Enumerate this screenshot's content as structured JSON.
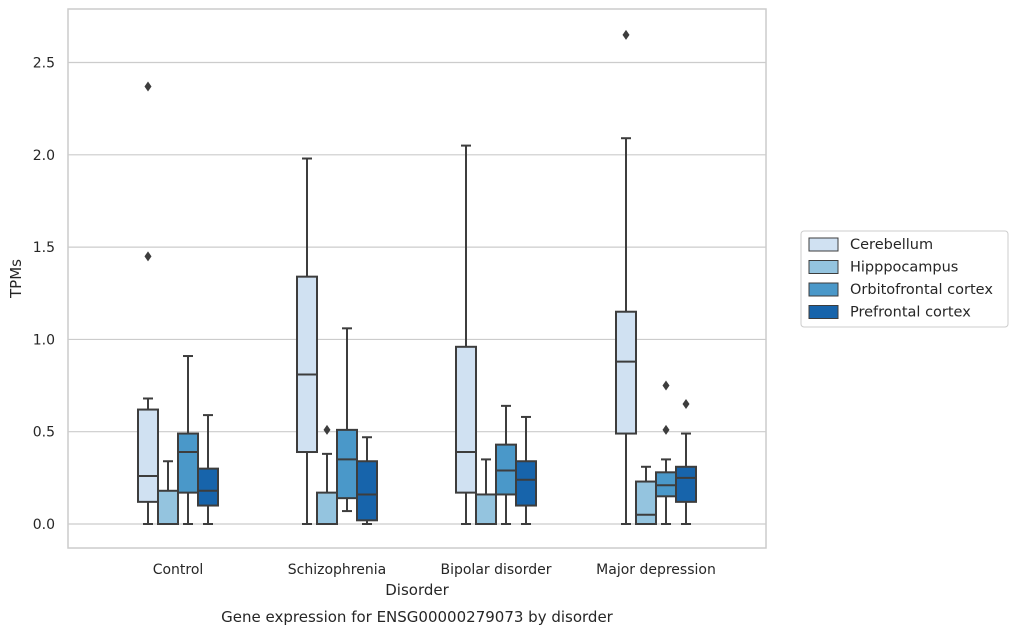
{
  "chart_data": {
    "type": "box",
    "title": "",
    "caption": "Gene expression for ENSG00000279073 by disorder",
    "xlabel": "Disorder",
    "ylabel": "TPMs",
    "categories": [
      "Control",
      "Schizophrenia",
      "Bipolar disorder",
      "Major depression"
    ],
    "ylim": [
      -0.13,
      2.79
    ],
    "yticks": [
      0.0,
      0.5,
      1.0,
      1.5,
      2.0,
      2.5
    ],
    "ytick_labels": [
      "0.0",
      "0.5",
      "1.0",
      "1.5",
      "2.0",
      "2.5"
    ],
    "grid": "horizontal",
    "legend_position": "right",
    "series": [
      {
        "name": "Cerebellum",
        "color": "#d0e1f2",
        "boxes": [
          {
            "whisker_low": 0.0,
            "q1": 0.12,
            "median": 0.26,
            "q3": 0.62,
            "whisker_high": 0.68,
            "outliers": [
              1.45,
              2.37
            ]
          },
          {
            "whisker_low": 0.0,
            "q1": 0.39,
            "median": 0.81,
            "q3": 1.34,
            "whisker_high": 1.98,
            "outliers": []
          },
          {
            "whisker_low": 0.0,
            "q1": 0.17,
            "median": 0.39,
            "q3": 0.96,
            "whisker_high": 2.05,
            "outliers": []
          },
          {
            "whisker_low": 0.0,
            "q1": 0.49,
            "median": 0.88,
            "q3": 1.15,
            "whisker_high": 2.09,
            "outliers": [
              2.65
            ]
          }
        ]
      },
      {
        "name": "Hipppocampus",
        "color": "#94c4df",
        "boxes": [
          {
            "whisker_low": 0.0,
            "q1": 0.0,
            "median": 0.0,
            "q3": 0.18,
            "whisker_high": 0.34,
            "outliers": []
          },
          {
            "whisker_low": 0.0,
            "q1": 0.0,
            "median": 0.0,
            "q3": 0.17,
            "whisker_high": 0.38,
            "outliers": [
              0.51
            ]
          },
          {
            "whisker_low": 0.0,
            "q1": 0.0,
            "median": 0.0,
            "q3": 0.16,
            "whisker_high": 0.35,
            "outliers": []
          },
          {
            "whisker_low": 0.0,
            "q1": 0.0,
            "median": 0.05,
            "q3": 0.23,
            "whisker_high": 0.31,
            "outliers": []
          }
        ]
      },
      {
        "name": "Orbitofrontal cortex",
        "color": "#4a98c9",
        "boxes": [
          {
            "whisker_low": 0.0,
            "q1": 0.17,
            "median": 0.39,
            "q3": 0.49,
            "whisker_high": 0.91,
            "outliers": []
          },
          {
            "whisker_low": 0.07,
            "q1": 0.14,
            "median": 0.35,
            "q3": 0.51,
            "whisker_high": 1.06,
            "outliers": []
          },
          {
            "whisker_low": 0.0,
            "q1": 0.16,
            "median": 0.29,
            "q3": 0.43,
            "whisker_high": 0.64,
            "outliers": []
          },
          {
            "whisker_low": 0.0,
            "q1": 0.15,
            "median": 0.21,
            "q3": 0.28,
            "whisker_high": 0.35,
            "outliers": [
              0.51,
              0.75
            ]
          }
        ]
      },
      {
        "name": "Prefrontal cortex",
        "color": "#1764ab",
        "boxes": [
          {
            "whisker_low": 0.0,
            "q1": 0.1,
            "median": 0.18,
            "q3": 0.3,
            "whisker_high": 0.59,
            "outliers": []
          },
          {
            "whisker_low": 0.0,
            "q1": 0.02,
            "median": 0.16,
            "q3": 0.34,
            "whisker_high": 0.47,
            "outliers": []
          },
          {
            "whisker_low": 0.0,
            "q1": 0.1,
            "median": 0.24,
            "q3": 0.34,
            "whisker_high": 0.58,
            "outliers": []
          },
          {
            "whisker_low": 0.0,
            "q1": 0.12,
            "median": 0.25,
            "q3": 0.31,
            "whisker_high": 0.49,
            "outliers": [
              0.65
            ]
          }
        ]
      }
    ]
  },
  "colors": {
    "grid": "#cccccc",
    "axis_frame": "#cccccc",
    "box_edge": "#3d3d3d",
    "text": "#262626"
  }
}
